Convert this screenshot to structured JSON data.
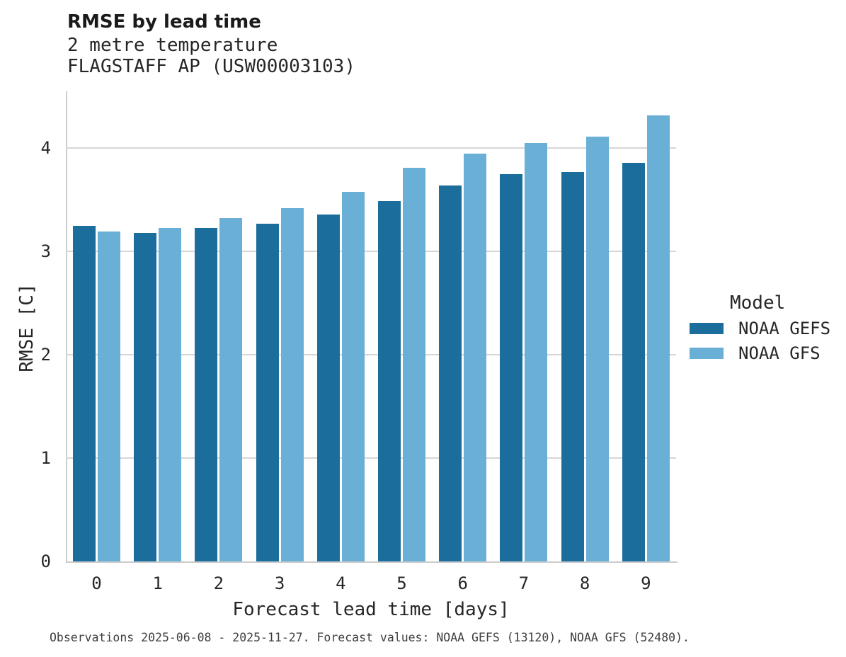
{
  "header": {
    "title": "RMSE by lead time",
    "subtitle_line1": "2 metre temperature",
    "subtitle_line2": "FLAGSTAFF AP (USW00003103)"
  },
  "legend": {
    "title": "Model",
    "entries": [
      "NOAA GEFS",
      "NOAA GFS"
    ]
  },
  "footer": {
    "caption": "Observations 2025-06-08 - 2025-11-27. Forecast values: NOAA GEFS (13120), NOAA GFS (52480)."
  },
  "colors": {
    "gefs_dark_blue": "#1b6d9c",
    "gfs_light_blue": "#6aafd6",
    "gridline": "#d6d6d6",
    "spine": "#cccccc",
    "text": "#262626",
    "footer_text": "#3d3d3d"
  },
  "chart_data": {
    "type": "bar",
    "title": "RMSE by lead time",
    "subtitle": "2 metre temperature — FLAGSTAFF AP (USW00003103)",
    "xlabel": "Forecast lead time [days]",
    "ylabel": "RMSE [C]",
    "categories": [
      "0",
      "1",
      "2",
      "3",
      "4",
      "5",
      "6",
      "7",
      "8",
      "9"
    ],
    "series": [
      {
        "name": "NOAA GEFS",
        "color": "#1b6d9c",
        "values": [
          3.25,
          3.18,
          3.23,
          3.27,
          3.36,
          3.49,
          3.64,
          3.75,
          3.77,
          3.86
        ]
      },
      {
        "name": "NOAA GFS",
        "color": "#6aafd6",
        "values": [
          3.19,
          3.23,
          3.32,
          3.42,
          3.58,
          3.81,
          3.95,
          4.05,
          4.11,
          4.32
        ]
      }
    ],
    "yticks": [
      0,
      1,
      2,
      3,
      4
    ],
    "ylim": [
      0,
      4.55
    ],
    "grid": "horizontal",
    "legend_title": "Model",
    "legend_position": "center-right"
  }
}
